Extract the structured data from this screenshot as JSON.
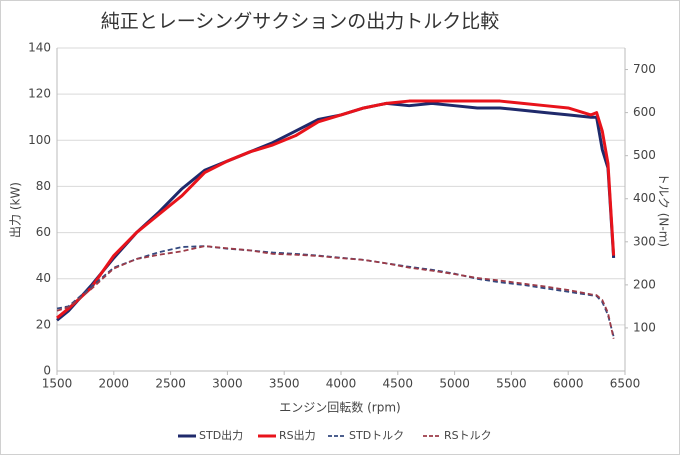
{
  "chart_data": {
    "type": "line",
    "title": "純正とレーシングサクションの出力トルク比較",
    "x_label": "エンジン回転数 (rpm)",
    "y_label": "出力 (kW)",
    "y2_label": "トルク (N-m)",
    "x": [
      1500,
      1600,
      1800,
      2000,
      2200,
      2400,
      2600,
      2800,
      3000,
      3200,
      3400,
      3600,
      3800,
      4000,
      4200,
      4400,
      4600,
      4800,
      5000,
      5200,
      5400,
      5600,
      5800,
      6000,
      6200,
      6250,
      6300,
      6350,
      6400
    ],
    "series": [
      {
        "name": "STD出力",
        "color": "#1f2a6b",
        "dashed": false,
        "values": [
          22,
          26,
          37,
          49,
          60,
          69,
          79,
          87,
          91,
          95,
          99,
          104,
          109,
          111,
          114,
          116,
          115,
          116,
          115,
          114,
          114,
          113,
          112,
          111,
          110,
          110,
          96,
          88,
          49
        ]
      },
      {
        "name": "RS出力",
        "color": "#e8131b",
        "dashed": false,
        "values": [
          23,
          27,
          36,
          50,
          60,
          68,
          76,
          86,
          91,
          95,
          98,
          102,
          108,
          111,
          114,
          116,
          117,
          117,
          117,
          117,
          117,
          116,
          115,
          114,
          111,
          112,
          104,
          90,
          50
        ]
      },
      {
        "name": "STDトルク",
        "color": "#34497f",
        "dashed": true,
        "axis": "y2",
        "values": [
          145,
          150,
          195,
          240,
          260,
          276,
          288,
          290,
          284,
          280,
          275,
          272,
          268,
          263,
          258,
          250,
          242,
          235,
          226,
          214,
          206,
          200,
          192,
          184,
          176,
          174,
          160,
          130,
          80
        ]
      },
      {
        "name": "RSトルク",
        "color": "#9c3b48",
        "dashed": true,
        "axis": "y2",
        "values": [
          140,
          148,
          190,
          238,
          260,
          270,
          278,
          290,
          285,
          280,
          272,
          270,
          267,
          262,
          258,
          250,
          240,
          233,
          225,
          216,
          210,
          203,
          196,
          188,
          178,
          176,
          165,
          135,
          75
        ]
      }
    ],
    "xlim": [
      1500,
      6500
    ],
    "xticks": [
      1500,
      2000,
      2500,
      3000,
      3500,
      4000,
      4500,
      5000,
      5500,
      6000,
      6500
    ],
    "ylim": [
      0,
      140
    ],
    "yticks": [
      0,
      20,
      40,
      60,
      80,
      100,
      120,
      140
    ],
    "y2lim": [
      0,
      750
    ],
    "y2ticks": [
      100,
      200,
      300,
      400,
      500,
      600,
      700
    ],
    "grid": true,
    "legend": "bottom"
  }
}
